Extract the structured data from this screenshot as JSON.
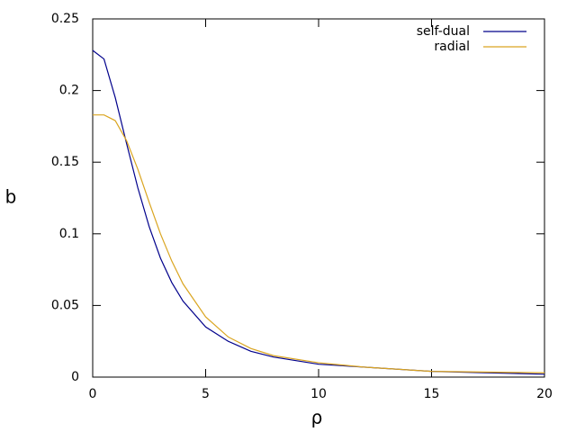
{
  "chart_data": {
    "type": "line",
    "x_label": "ρ",
    "y_label": "b",
    "x": [
      0,
      0.5,
      1,
      1.5,
      2,
      2.5,
      3,
      3.5,
      4,
      5,
      6,
      7,
      8,
      10,
      12,
      15,
      20
    ],
    "series": [
      {
        "name": "self-dual",
        "color": "#00008b",
        "values": [
          0.228,
          0.222,
          0.195,
          0.163,
          0.132,
          0.105,
          0.083,
          0.066,
          0.053,
          0.035,
          0.025,
          0.018,
          0.014,
          0.009,
          0.007,
          0.004,
          0.002
        ]
      },
      {
        "name": "radial",
        "color": "#daa520",
        "values": [
          0.183,
          0.183,
          0.179,
          0.165,
          0.145,
          0.122,
          0.1,
          0.081,
          0.065,
          0.042,
          0.028,
          0.02,
          0.015,
          0.01,
          0.007,
          0.004,
          0.003
        ]
      }
    ],
    "xlim": [
      0,
      20
    ],
    "xticks": [
      0,
      5,
      10,
      15,
      20
    ],
    "ylim": [
      0,
      0.25
    ],
    "yticks": [
      0,
      0.05,
      0.1,
      0.15,
      0.2,
      0.25
    ],
    "legend": "top-right"
  }
}
